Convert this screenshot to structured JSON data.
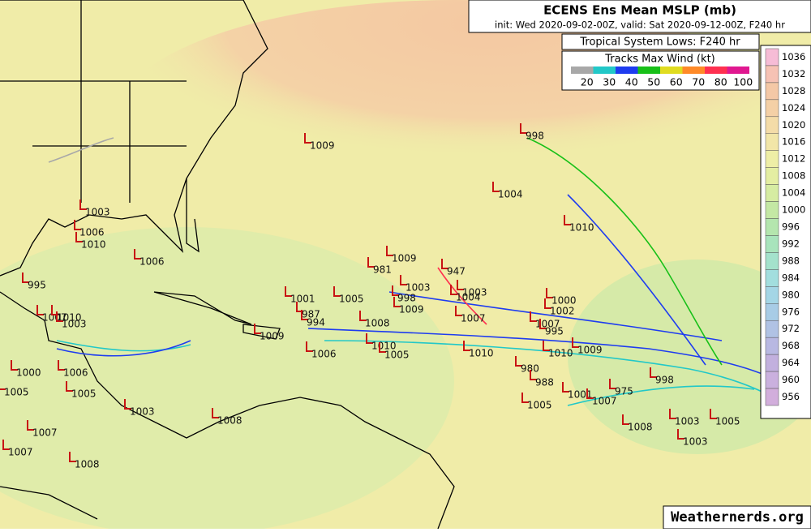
{
  "header": {
    "title": "ECENS Ens Mean MSLP (mb)",
    "subtitle": "init: Wed 2020-09-02-00Z, valid: Sat 2020-09-12-00Z, F240 hr"
  },
  "legend": {
    "lows_title": "Tropical System Lows: F240 hr",
    "tracks_title": "Tracks Max Wind (kt)",
    "wind_speeds": [
      20,
      30,
      40,
      50,
      60,
      70,
      80,
      100
    ],
    "wind_colors": [
      "#a8a8a8",
      "#22c8c8",
      "#1e3cf0",
      "#18c018",
      "#e0dc20",
      "#ff8a28",
      "#ff3050",
      "#e01890"
    ]
  },
  "colorbar": {
    "values": [
      1036,
      1032,
      1028,
      1024,
      1020,
      1016,
      1012,
      1008,
      1004,
      1000,
      996,
      992,
      988,
      984,
      980,
      976,
      972,
      968,
      964,
      960,
      956
    ],
    "colors": [
      "#f6bcd6",
      "#f6c2b4",
      "#f4c8a6",
      "#f4d0a6",
      "#f4dca8",
      "#f2e6a8",
      "#eeeea6",
      "#e4eea2",
      "#d6eca2",
      "#c4e8a4",
      "#b4e6ae",
      "#a8e4bc",
      "#a4e2cc",
      "#a2dede",
      "#a4d6e6",
      "#a8cce6",
      "#b0c2e4",
      "#b8b8e2",
      "#c2b0de",
      "#cab0de",
      "#d2aedc"
    ]
  },
  "lows": [
    1009,
    998,
    1004,
    1010,
    1006,
    1010,
    1003,
    1006,
    995,
    1009,
    981,
    947,
    1001,
    1005,
    987,
    994,
    998,
    1003,
    1009,
    1008,
    1003,
    1004,
    1007,
    1000,
    1002,
    1009,
    1006,
    1010,
    1005,
    1010,
    1010,
    1009,
    1007,
    995,
    980,
    988,
    1001,
    1007,
    975,
    998,
    1005,
    1008,
    1003,
    1003,
    1005,
    1007,
    1010,
    1003,
    1000,
    1006,
    1005,
    1005,
    1003,
    1008,
    1007,
    1007,
    1008
  ],
  "watermark": "Weathernerds.org"
}
